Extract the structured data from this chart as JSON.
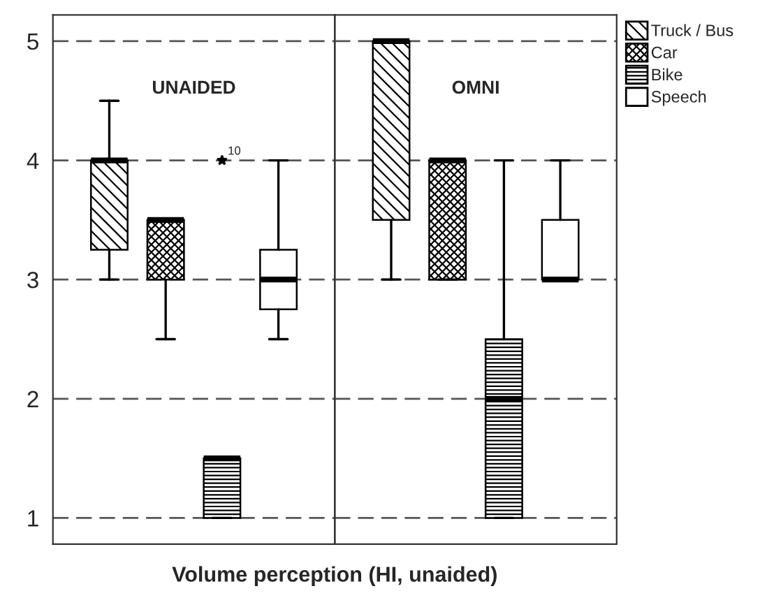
{
  "chart_data": {
    "type": "box",
    "xlabel": "Volume perception (HI, unaided)",
    "categories": [
      "UNAIDED",
      "OMNI"
    ],
    "ylim": [
      0.78,
      5.22
    ],
    "yticks": [
      1,
      2,
      3,
      4,
      5
    ],
    "grid": "y",
    "legend": "top right",
    "series": [
      {
        "name": "Truck / Bus",
        "color": "#000000",
        "boxes": [
          {
            "low": 3,
            "q1": 3.25,
            "median": 4,
            "q3": 4,
            "high": 4.5
          },
          {
            "low": 3,
            "q1": 3.5,
            "median": 5,
            "q3": 5,
            "high": 5
          }
        ]
      },
      {
        "name": "Car",
        "color": "#000000",
        "boxes": [
          {
            "low": 2.5,
            "q1": 3,
            "median": 3.5,
            "q3": 3.5,
            "high": 3.5
          },
          {
            "low": 3,
            "q1": 3,
            "median": 4,
            "q3": 4,
            "high": 4
          }
        ]
      },
      {
        "name": "Bike",
        "color": "#000000",
        "boxes": [
          {
            "low": 1,
            "q1": 1,
            "median": 1.5,
            "q3": 1.5,
            "high": 1.5,
            "outliers": [
              4
            ]
          },
          {
            "low": 1,
            "q1": 1,
            "median": 2,
            "q3": 2.5,
            "high": 4
          }
        ]
      },
      {
        "name": "Speech",
        "color": "#ffffff",
        "boxes": [
          {
            "low": 2.5,
            "q1": 2.75,
            "median": 3,
            "q3": 3.25,
            "high": 4
          },
          {
            "low": 3,
            "q1": 3,
            "median": 3,
            "q3": 3.5,
            "high": 4
          }
        ]
      }
    ],
    "annotations": [
      "10"
    ]
  }
}
